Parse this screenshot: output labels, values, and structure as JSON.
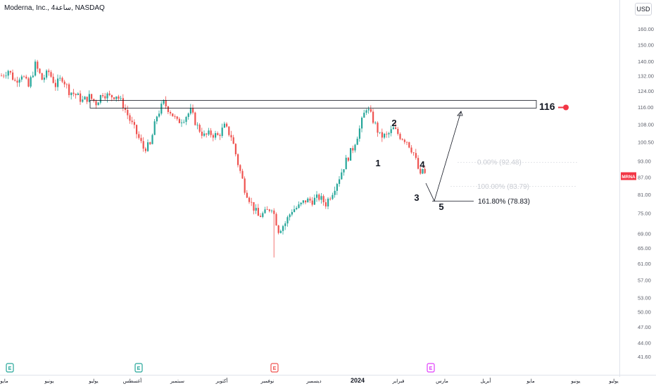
{
  "header": {
    "title": "Moderna, Inc., 4ساعة, NASDAQ",
    "currency": "USD"
  },
  "colors": {
    "up": "#26a69a",
    "down": "#ef5350",
    "ticker_badge": "#f23645",
    "annotation": "#131722",
    "fib_faded": "#c9ccd3"
  },
  "chart_data": {
    "type": "candlestick",
    "ticker": "MRNA",
    "last_price": 87.2,
    "y_axis": {
      "scale": "log",
      "range": [
        40.5,
        170
      ],
      "ticks": [
        "160.00",
        "150.00",
        "140.00",
        "132.00",
        "124.00",
        "116.00",
        "108.00",
        "100.50",
        "93.00",
        "87.00",
        "81.00",
        "75.00",
        "69.00",
        "65.00",
        "61.00",
        "57.00",
        "53.00",
        "50.00",
        "47.00",
        "44.00",
        "41.60"
      ]
    },
    "x_axis": {
      "labels": [
        "مايو",
        "يونيو",
        "يوليو",
        "أغسطس",
        "سبتمبر",
        "أكتوبر",
        "نوفمبر",
        "ديسمبر",
        "2024",
        "فبراير",
        "مارس",
        "أبريل",
        "مايو",
        "يونيو",
        "يوليو"
      ]
    },
    "earnings_markers": [
      "E",
      "E",
      "E",
      "E"
    ],
    "resistance": {
      "value": 116,
      "label": "116"
    },
    "fibonacci": [
      {
        "label": "0.00% (92.48)",
        "value": 92.48,
        "faded": true
      },
      {
        "label": "100.00% (83.79)",
        "value": 83.79,
        "faded": true
      },
      {
        "label": "161.80% (78.83)",
        "value": 78.83,
        "faded": false
      }
    ],
    "wave_labels": [
      "1",
      "2",
      "3",
      "4",
      "5"
    ],
    "projection": [
      {
        "from": "wave4",
        "to": 78.83
      },
      {
        "from": 78.83,
        "to": 114
      }
    ],
    "price_path": [
      [
        0,
        132
      ],
      [
        3,
        135
      ],
      [
        6,
        129
      ],
      [
        9,
        133
      ],
      [
        12,
        126
      ],
      [
        15,
        138
      ],
      [
        18,
        130
      ],
      [
        21,
        134
      ],
      [
        24,
        127
      ],
      [
        27,
        131
      ],
      [
        30,
        124
      ],
      [
        33,
        122
      ],
      [
        36,
        119
      ],
      [
        39,
        121
      ],
      [
        42,
        118
      ],
      [
        45,
        123
      ],
      [
        48,
        121
      ],
      [
        51,
        122
      ],
      [
        54,
        117
      ],
      [
        57,
        110
      ],
      [
        60,
        104
      ],
      [
        63,
        98
      ],
      [
        66,
        99
      ],
      [
        69,
        112
      ],
      [
        72,
        118
      ],
      [
        75,
        114
      ],
      [
        78,
        109
      ],
      [
        81,
        111
      ],
      [
        84,
        114
      ],
      [
        87,
        107
      ],
      [
        90,
        103
      ],
      [
        93,
        104
      ],
      [
        96,
        103
      ],
      [
        99,
        107
      ],
      [
        102,
        103
      ],
      [
        105,
        92
      ],
      [
        108,
        83
      ],
      [
        111,
        78
      ],
      [
        114,
        74
      ],
      [
        117,
        75
      ],
      [
        120,
        77
      ],
      [
        123,
        70
      ],
      [
        126,
        72
      ],
      [
        129,
        76
      ],
      [
        132,
        77
      ],
      [
        135,
        79
      ],
      [
        138,
        79
      ],
      [
        141,
        80
      ],
      [
        144,
        78
      ],
      [
        147,
        82
      ],
      [
        150,
        87
      ],
      [
        153,
        93
      ],
      [
        156,
        98
      ],
      [
        159,
        106
      ],
      [
        162,
        116
      ],
      [
        165,
        110
      ],
      [
        168,
        103
      ],
      [
        171,
        103
      ],
      [
        174,
        106
      ],
      [
        177,
        103
      ],
      [
        180,
        101
      ],
      [
        183,
        96
      ],
      [
        186,
        87
      ],
      [
        187,
        90
      ],
      [
        188,
        88
      ]
    ]
  }
}
